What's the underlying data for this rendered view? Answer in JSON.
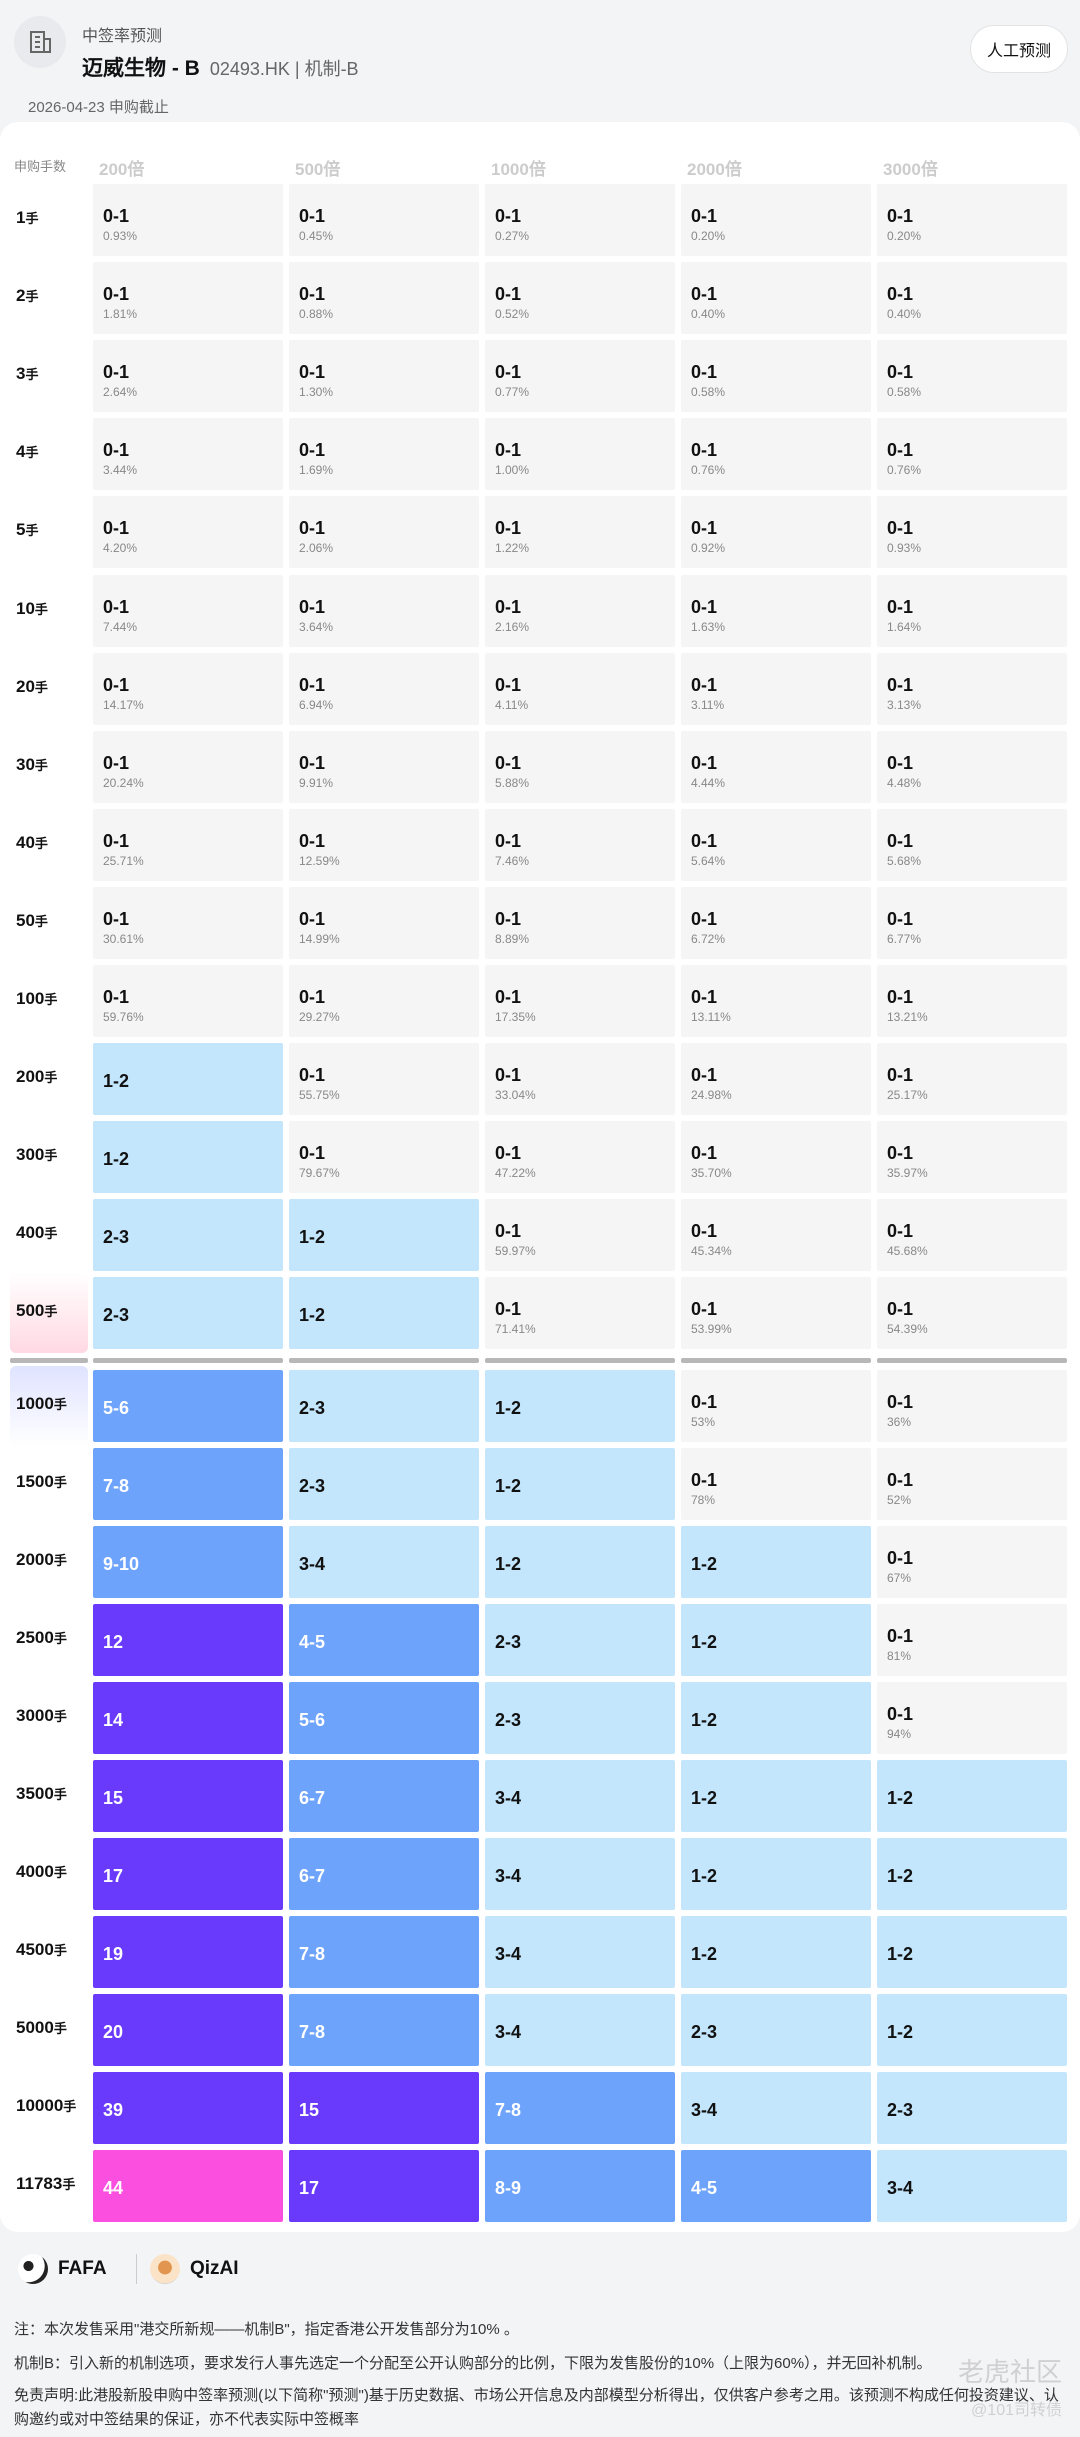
{
  "header": {
    "subtitle": "中签率预测",
    "title": "迈威生物 - B",
    "code": "02493.HK | 机制-B",
    "date_line": "2026-04-23 申购截止",
    "manual_button": "人工预测"
  },
  "table": {
    "first_header": "申购手数",
    "columns": [
      "200倍",
      "500倍",
      "1000倍",
      "2000倍",
      "3000倍"
    ],
    "rows": [
      {
        "label": "1",
        "unit": "手",
        "cells": [
          [
            "0-1",
            "0.93%"
          ],
          [
            "0-1",
            "0.45%"
          ],
          [
            "0-1",
            "0.27%"
          ],
          [
            "0-1",
            "0.20%"
          ],
          [
            "0-1",
            "0.20%"
          ]
        ]
      },
      {
        "label": "2",
        "unit": "手",
        "cells": [
          [
            "0-1",
            "1.81%"
          ],
          [
            "0-1",
            "0.88%"
          ],
          [
            "0-1",
            "0.52%"
          ],
          [
            "0-1",
            "0.40%"
          ],
          [
            "0-1",
            "0.40%"
          ]
        ]
      },
      {
        "label": "3",
        "unit": "手",
        "cells": [
          [
            "0-1",
            "2.64%"
          ],
          [
            "0-1",
            "1.30%"
          ],
          [
            "0-1",
            "0.77%"
          ],
          [
            "0-1",
            "0.58%"
          ],
          [
            "0-1",
            "0.58%"
          ]
        ]
      },
      {
        "label": "4",
        "unit": "手",
        "cells": [
          [
            "0-1",
            "3.44%"
          ],
          [
            "0-1",
            "1.69%"
          ],
          [
            "0-1",
            "1.00%"
          ],
          [
            "0-1",
            "0.76%"
          ],
          [
            "0-1",
            "0.76%"
          ]
        ]
      },
      {
        "label": "5",
        "unit": "手",
        "cells": [
          [
            "0-1",
            "4.20%"
          ],
          [
            "0-1",
            "2.06%"
          ],
          [
            "0-1",
            "1.22%"
          ],
          [
            "0-1",
            "0.92%"
          ],
          [
            "0-1",
            "0.93%"
          ]
        ]
      },
      {
        "label": "10",
        "unit": "手",
        "cells": [
          [
            "0-1",
            "7.44%"
          ],
          [
            "0-1",
            "3.64%"
          ],
          [
            "0-1",
            "2.16%"
          ],
          [
            "0-1",
            "1.63%"
          ],
          [
            "0-1",
            "1.64%"
          ]
        ]
      },
      {
        "label": "20",
        "unit": "手",
        "cells": [
          [
            "0-1",
            "14.17%"
          ],
          [
            "0-1",
            "6.94%"
          ],
          [
            "0-1",
            "4.11%"
          ],
          [
            "0-1",
            "3.11%"
          ],
          [
            "0-1",
            "3.13%"
          ]
        ]
      },
      {
        "label": "30",
        "unit": "手",
        "cells": [
          [
            "0-1",
            "20.24%"
          ],
          [
            "0-1",
            "9.91%"
          ],
          [
            "0-1",
            "5.88%"
          ],
          [
            "0-1",
            "4.44%"
          ],
          [
            "0-1",
            "4.48%"
          ]
        ]
      },
      {
        "label": "40",
        "unit": "手",
        "cells": [
          [
            "0-1",
            "25.71%"
          ],
          [
            "0-1",
            "12.59%"
          ],
          [
            "0-1",
            "7.46%"
          ],
          [
            "0-1",
            "5.64%"
          ],
          [
            "0-1",
            "5.68%"
          ]
        ]
      },
      {
        "label": "50",
        "unit": "手",
        "cells": [
          [
            "0-1",
            "30.61%"
          ],
          [
            "0-1",
            "14.99%"
          ],
          [
            "0-1",
            "8.89%"
          ],
          [
            "0-1",
            "6.72%"
          ],
          [
            "0-1",
            "6.77%"
          ]
        ]
      },
      {
        "label": "100",
        "unit": "手",
        "cells": [
          [
            "0-1",
            "59.76%"
          ],
          [
            "0-1",
            "29.27%"
          ],
          [
            "0-1",
            "17.35%"
          ],
          [
            "0-1",
            "13.11%"
          ],
          [
            "0-1",
            "13.21%"
          ]
        ]
      },
      {
        "label": "200",
        "unit": "手",
        "cells": [
          [
            "1-2",
            ""
          ],
          [
            "0-1",
            "55.75%"
          ],
          [
            "0-1",
            "33.04%"
          ],
          [
            "0-1",
            "24.98%"
          ],
          [
            "0-1",
            "25.17%"
          ]
        ]
      },
      {
        "label": "300",
        "unit": "手",
        "cells": [
          [
            "1-2",
            ""
          ],
          [
            "0-1",
            "79.67%"
          ],
          [
            "0-1",
            "47.22%"
          ],
          [
            "0-1",
            "35.70%"
          ],
          [
            "0-1",
            "35.97%"
          ]
        ]
      },
      {
        "label": "400",
        "unit": "手",
        "cells": [
          [
            "2-3",
            ""
          ],
          [
            "1-2",
            ""
          ],
          [
            "0-1",
            "59.97%"
          ],
          [
            "0-1",
            "45.34%"
          ],
          [
            "0-1",
            "45.68%"
          ]
        ]
      },
      {
        "label": "500",
        "unit": "手",
        "cells": [
          [
            "2-3",
            ""
          ],
          [
            "1-2",
            ""
          ],
          [
            "0-1",
            "71.41%"
          ],
          [
            "0-1",
            "53.99%"
          ],
          [
            "0-1",
            "54.39%"
          ]
        ]
      },
      {
        "label": "1000",
        "unit": "手",
        "cells": [
          [
            "5-6",
            ""
          ],
          [
            "2-3",
            ""
          ],
          [
            "1-2",
            ""
          ],
          [
            "0-1",
            "53%"
          ],
          [
            "0-1",
            "36%"
          ]
        ]
      },
      {
        "label": "1500",
        "unit": "手",
        "cells": [
          [
            "7-8",
            ""
          ],
          [
            "2-3",
            ""
          ],
          [
            "1-2",
            ""
          ],
          [
            "0-1",
            "78%"
          ],
          [
            "0-1",
            "52%"
          ]
        ]
      },
      {
        "label": "2000",
        "unit": "手",
        "cells": [
          [
            "9-10",
            ""
          ],
          [
            "3-4",
            ""
          ],
          [
            "1-2",
            ""
          ],
          [
            "1-2",
            ""
          ],
          [
            "0-1",
            "67%"
          ]
        ]
      },
      {
        "label": "2500",
        "unit": "手",
        "cells": [
          [
            "12",
            ""
          ],
          [
            "4-5",
            ""
          ],
          [
            "2-3",
            ""
          ],
          [
            "1-2",
            ""
          ],
          [
            "0-1",
            "81%"
          ]
        ]
      },
      {
        "label": "3000",
        "unit": "手",
        "cells": [
          [
            "14",
            ""
          ],
          [
            "5-6",
            ""
          ],
          [
            "2-3",
            ""
          ],
          [
            "1-2",
            ""
          ],
          [
            "0-1",
            "94%"
          ]
        ]
      },
      {
        "label": "3500",
        "unit": "手",
        "cells": [
          [
            "15",
            ""
          ],
          [
            "6-7",
            ""
          ],
          [
            "3-4",
            ""
          ],
          [
            "1-2",
            ""
          ],
          [
            "1-2",
            ""
          ]
        ]
      },
      {
        "label": "4000",
        "unit": "手",
        "cells": [
          [
            "17",
            ""
          ],
          [
            "6-7",
            ""
          ],
          [
            "3-4",
            ""
          ],
          [
            "1-2",
            ""
          ],
          [
            "1-2",
            ""
          ]
        ]
      },
      {
        "label": "4500",
        "unit": "手",
        "cells": [
          [
            "19",
            ""
          ],
          [
            "7-8",
            ""
          ],
          [
            "3-4",
            ""
          ],
          [
            "1-2",
            ""
          ],
          [
            "1-2",
            ""
          ]
        ]
      },
      {
        "label": "5000",
        "unit": "手",
        "cells": [
          [
            "20",
            ""
          ],
          [
            "7-8",
            ""
          ],
          [
            "3-4",
            ""
          ],
          [
            "2-3",
            ""
          ],
          [
            "1-2",
            ""
          ]
        ]
      },
      {
        "label": "10000",
        "unit": "手",
        "cells": [
          [
            "39",
            ""
          ],
          [
            "15",
            ""
          ],
          [
            "7-8",
            ""
          ],
          [
            "3-4",
            ""
          ],
          [
            "2-3",
            ""
          ]
        ]
      },
      {
        "label": "11783",
        "unit": "手",
        "cells": [
          [
            "44",
            ""
          ],
          [
            "17",
            ""
          ],
          [
            "8-9",
            ""
          ],
          [
            "4-5",
            ""
          ],
          [
            "3-4",
            ""
          ]
        ]
      }
    ],
    "colors": {
      "grey": "#f5f5f5",
      "light_blue": "#c3e6fc",
      "mid_blue": "#6ea3fb",
      "purple": "#6a3afc",
      "magenta": "#fb4fe0"
    }
  },
  "footer": {
    "brand1": "FAFA",
    "brand2": "QizAI",
    "note1": "注：本次发售采用\"港交所新规——机制B\"，指定香港公开发售部分为10% 。",
    "note2": "机制B：引入新的机制选项，要求发行人事先选定一个分配至公开认购部分的比例，下限为发售股份的10%（上限为60%），并无回补机制。",
    "note3": "免责声明:此港股新股申购中签率预测(以下简称\"预测\")基于历史数据、市场公开信息及内部模型分析得出，仅供客户参考之用。该预测不构成任何投资建议、认购邀约或对中签结果的保证，亦不代表实际中签概率",
    "watermark": "老虎社区",
    "watermark2": "@101司转债"
  }
}
